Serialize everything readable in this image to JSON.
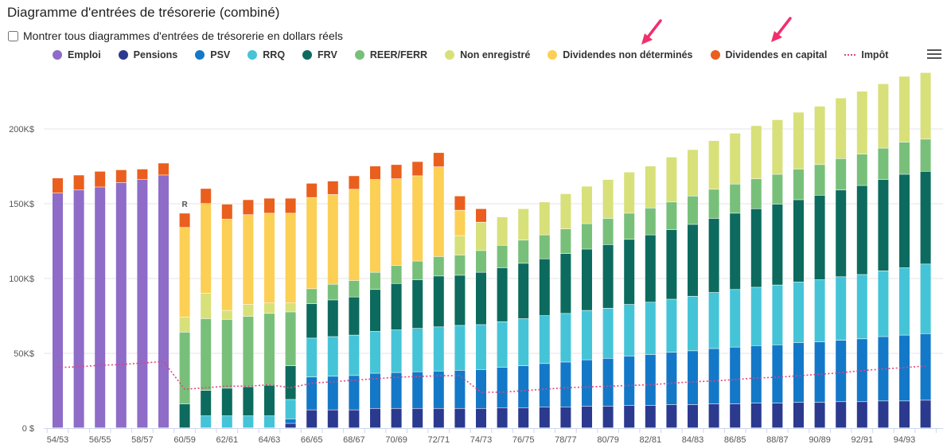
{
  "title": "Diagramme d'entrées de trésorerie (combiné)",
  "toggle": {
    "label": "Montrer tous diagrammes d'entrées de trésorerie en dollars réels",
    "checked": false
  },
  "marker_label": "R",
  "chart_data": {
    "type": "bar",
    "stacked": true,
    "title": "Diagramme d'entrées de trésorerie (combiné)",
    "categories": [
      "54/53",
      "55/54",
      "56/55",
      "57/56",
      "58/57",
      "59/58",
      "60/59",
      "61/60",
      "62/61",
      "63/62",
      "64/63",
      "65/64",
      "66/65",
      "67/66",
      "68/67",
      "69/68",
      "70/69",
      "71/70",
      "72/71",
      "73/72",
      "74/73",
      "75/74",
      "76/75",
      "77/76",
      "78/77",
      "79/78",
      "80/79",
      "81/80",
      "82/81",
      "83/82",
      "84/83",
      "85/84",
      "86/85",
      "87/86",
      "88/87",
      "89/88",
      "90/89",
      "91/90",
      "92/91",
      "93/92",
      "94/93",
      "95/94"
    ],
    "x_tick_labels": [
      "54/53",
      "56/55",
      "58/57",
      "60/59",
      "62/61",
      "64/63",
      "66/65",
      "68/67",
      "70/69",
      "72/71",
      "74/73",
      "76/75",
      "78/77",
      "80/79",
      "82/81",
      "84/83",
      "86/85",
      "88/87",
      "90/89",
      "92/91",
      "94/93"
    ],
    "y_tick_labels": [
      "0 $",
      "50K$",
      "100K$",
      "150K$",
      "200K$"
    ],
    "ylim": [
      0,
      250000
    ],
    "legend": [
      {
        "name": "Emploi",
        "color": "#8e6cc8",
        "shape": "dot"
      },
      {
        "name": "Pensions",
        "color": "#2b3a8f",
        "shape": "dot"
      },
      {
        "name": "PSV",
        "color": "#1478c8",
        "shape": "dot"
      },
      {
        "name": "RRQ",
        "color": "#45c4d8",
        "shape": "dot"
      },
      {
        "name": "FRV",
        "color": "#0c6b5e",
        "shape": "dot"
      },
      {
        "name": "REER/FERR",
        "color": "#78c07a",
        "shape": "dot"
      },
      {
        "name": "Non enregistré",
        "color": "#d8e07a",
        "shape": "dot"
      },
      {
        "name": "Dividendes non déterminés",
        "color": "#fccf55",
        "shape": "dot"
      },
      {
        "name": "Dividendes en capital",
        "color": "#ea5f1e",
        "shape": "dot"
      },
      {
        "name": "Impôt",
        "color": "#e0457b",
        "shape": "dotted-line"
      }
    ],
    "series": [
      {
        "name": "Emploi",
        "values": [
          157000,
          159000,
          161000,
          164000,
          166000,
          169000,
          0,
          0,
          0,
          0,
          0,
          0,
          0,
          0,
          0,
          0,
          0,
          0,
          0,
          0,
          0,
          0,
          0,
          0,
          0,
          0,
          0,
          0,
          0,
          0,
          0,
          0,
          0,
          0,
          0,
          0,
          0,
          0,
          0,
          0,
          0,
          0
        ]
      },
      {
        "name": "Pensions",
        "values": [
          0,
          0,
          0,
          0,
          0,
          0,
          0,
          0,
          0,
          0,
          0,
          3000,
          12000,
          12000,
          12000,
          13000,
          13000,
          13000,
          13000,
          13000,
          13000,
          13500,
          13500,
          14000,
          14000,
          14500,
          14500,
          15000,
          15000,
          15500,
          15500,
          16000,
          16000,
          16500,
          16500,
          17000,
          17000,
          17500,
          17500,
          18000,
          18000,
          18500
        ]
      },
      {
        "name": "PSV",
        "values": [
          0,
          0,
          0,
          0,
          0,
          0,
          0,
          0,
          0,
          0,
          0,
          3000,
          22000,
          22500,
          23000,
          23500,
          24000,
          24500,
          25000,
          25500,
          26000,
          27000,
          28000,
          29000,
          30000,
          31000,
          32000,
          33000,
          34000,
          35000,
          36000,
          37000,
          38000,
          38500,
          39000,
          40000,
          40500,
          41000,
          42000,
          43000,
          44000,
          44500
        ]
      },
      {
        "name": "RRQ",
        "values": [
          0,
          0,
          0,
          0,
          0,
          0,
          0,
          8000,
          8000,
          8000,
          8000,
          13000,
          26000,
          26500,
          27000,
          28000,
          28500,
          29000,
          29500,
          30000,
          30000,
          30500,
          31500,
          32000,
          32500,
          33000,
          33500,
          34500,
          35000,
          35500,
          36500,
          37500,
          38500,
          39000,
          40000,
          40500,
          41500,
          42500,
          43000,
          44000,
          45000,
          46500
        ]
      },
      {
        "name": "FRV",
        "values": [
          0,
          0,
          0,
          0,
          0,
          0,
          16000,
          17000,
          18500,
          19500,
          20500,
          22500,
          23000,
          24500,
          25500,
          28000,
          31000,
          32500,
          34000,
          33500,
          35000,
          36000,
          37000,
          38000,
          40000,
          41000,
          42500,
          43500,
          45000,
          46500,
          48000,
          49500,
          51000,
          52500,
          54000,
          55000,
          56500,
          58000,
          59500,
          61000,
          62500,
          62000
        ]
      },
      {
        "name": "REER/FERR",
        "values": [
          0,
          0,
          0,
          0,
          0,
          0,
          48000,
          48000,
          46000,
          47000,
          48000,
          36000,
          10000,
          10500,
          11000,
          11500,
          12000,
          12500,
          13000,
          13500,
          14500,
          15000,
          15500,
          16000,
          16500,
          17000,
          17500,
          17500,
          18000,
          18500,
          19000,
          19500,
          19500,
          20000,
          20000,
          20500,
          20500,
          21000,
          21000,
          21000,
          21500,
          21500
        ]
      },
      {
        "name": "Non enregistré",
        "values": [
          0,
          0,
          0,
          0,
          0,
          0,
          10000,
          17000,
          6000,
          8000,
          7000,
          6000,
          0,
          0,
          0,
          0,
          0,
          0,
          0,
          13000,
          19000,
          19000,
          21000,
          22000,
          23500,
          25000,
          26000,
          27500,
          28000,
          30000,
          31000,
          32500,
          34000,
          35500,
          36500,
          38000,
          39000,
          40500,
          42000,
          43000,
          44000,
          44500
        ]
      },
      {
        "name": "Dividendes non déterminés",
        "values": [
          0,
          0,
          0,
          0,
          0,
          0,
          60000,
          60000,
          61000,
          60000,
          60000,
          60000,
          61000,
          60000,
          61000,
          62000,
          58000,
          57000,
          60000,
          17000,
          0,
          0,
          0,
          0,
          0,
          0,
          0,
          0,
          0,
          0,
          0,
          0,
          0,
          0,
          0,
          0,
          0,
          0,
          0,
          0,
          0,
          0
        ]
      },
      {
        "name": "Dividendes en capital",
        "values": [
          10000,
          10000,
          10500,
          8500,
          7000,
          8000,
          9500,
          10000,
          10000,
          10000,
          10000,
          10000,
          9500,
          9000,
          9000,
          9000,
          9500,
          9500,
          9500,
          9500,
          9000,
          0,
          0,
          0,
          0,
          0,
          0,
          0,
          0,
          0,
          0,
          0,
          0,
          0,
          0,
          0,
          0,
          0,
          0,
          0,
          0,
          0
        ]
      },
      {
        "name": "Impôt",
        "type": "line",
        "values": [
          40500,
          41000,
          42000,
          42500,
          43500,
          44500,
          26000,
          27000,
          28000,
          28000,
          29000,
          27000,
          30000,
          31000,
          32000,
          33000,
          34000,
          34500,
          35000,
          35000,
          24000,
          24000,
          25000,
          26000,
          27000,
          27500,
          28000,
          28500,
          29000,
          30000,
          31000,
          31500,
          32500,
          33500,
          34000,
          35000,
          36000,
          37000,
          38500,
          39500,
          40500,
          41500
        ]
      }
    ]
  }
}
